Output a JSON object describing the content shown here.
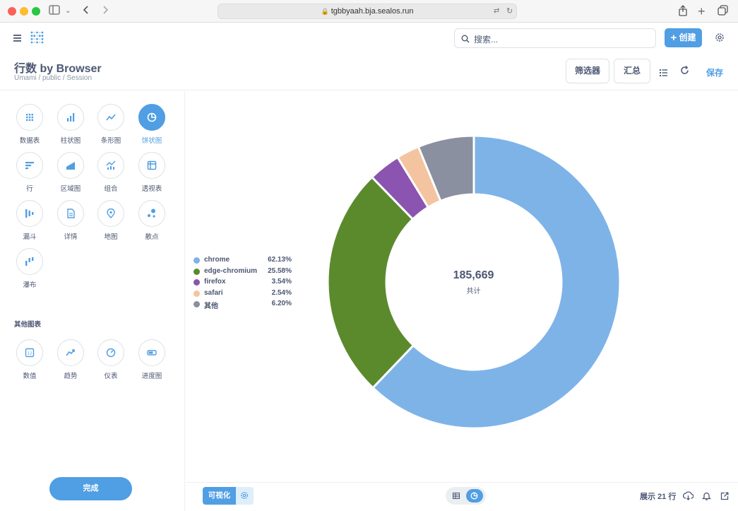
{
  "browser": {
    "url": "tgbbyaah.bja.sealos.run"
  },
  "header": {
    "search_placeholder": "搜索...",
    "create_label": "创建"
  },
  "question": {
    "title": "行数 by Browser",
    "breadcrumb": "Umami  /  public  /  Session",
    "filter_label": "筛选器",
    "summarize_label": "汇总",
    "save_label": "保存"
  },
  "sidebar": {
    "chart_types": [
      {
        "label": "数据表",
        "icon": "table-grid-icon"
      },
      {
        "label": "柱状图",
        "icon": "bar-chart-icon"
      },
      {
        "label": "条形图",
        "icon": "line-chart-icon"
      },
      {
        "label": "饼状图",
        "icon": "pie-chart-icon",
        "active": true
      },
      {
        "label": "行",
        "icon": "row-chart-icon"
      },
      {
        "label": "区域图",
        "icon": "area-chart-icon"
      },
      {
        "label": "组合",
        "icon": "combo-chart-icon"
      },
      {
        "label": "透视表",
        "icon": "pivot-table-icon"
      },
      {
        "label": "漏斗",
        "icon": "funnel-icon"
      },
      {
        "label": "详情",
        "icon": "detail-document-icon"
      },
      {
        "label": "地图",
        "icon": "map-pin-icon"
      },
      {
        "label": "散点",
        "icon": "scatter-icon"
      },
      {
        "label": "瀑布",
        "icon": "waterfall-icon"
      }
    ],
    "other_heading": "其他图表",
    "other_types": [
      {
        "label": "数值",
        "icon": "number-icon"
      },
      {
        "label": "趋势",
        "icon": "trend-icon"
      },
      {
        "label": "仪表",
        "icon": "gauge-icon"
      },
      {
        "label": "进度图",
        "icon": "progress-icon"
      }
    ],
    "done_label": "完成"
  },
  "chart_data": {
    "type": "pie",
    "donut": true,
    "total": "185,669",
    "total_label": "共计",
    "slices": [
      {
        "name": "chrome",
        "percent": 62.13,
        "label": "62.13%",
        "color": "#7eb3e8"
      },
      {
        "name": "edge-chromium",
        "percent": 25.58,
        "label": "25.58%",
        "color": "#5b8a2d"
      },
      {
        "name": "firefox",
        "percent": 3.54,
        "label": "3.54%",
        "color": "#8b54b0"
      },
      {
        "name": "safari",
        "percent": 2.54,
        "label": "2.54%",
        "color": "#f4c4a0"
      },
      {
        "name": "其他",
        "percent": 6.2,
        "label": "6.20%",
        "color": "#8a90a0"
      }
    ],
    "legend_position": "left"
  },
  "footer": {
    "viz_label": "可视化",
    "row_count": "展示 21 行"
  }
}
